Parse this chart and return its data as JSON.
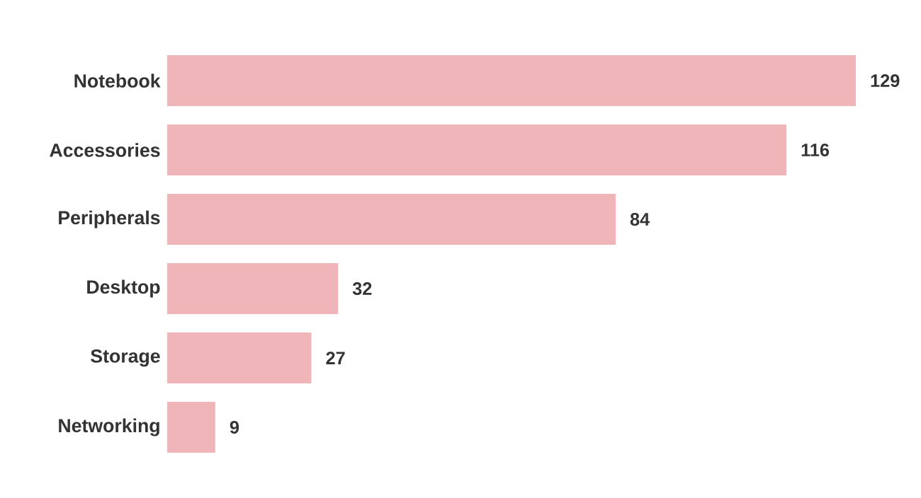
{
  "chart_data": {
    "type": "bar",
    "orientation": "horizontal",
    "categories": [
      "Notebook",
      "Accessories",
      "Peripherals",
      "Desktop",
      "Storage",
      "Networking"
    ],
    "values": [
      129,
      116,
      84,
      32,
      27,
      9
    ],
    "color": "#efb5b9",
    "data_labels": true,
    "tick_labels": "y"
  }
}
